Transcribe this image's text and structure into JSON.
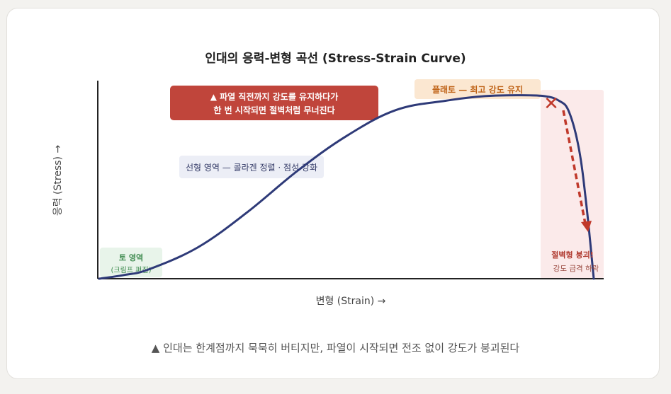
{
  "title": "인대의 응력-변형 곡선 (Stress-Strain Curve)",
  "caption": "▲ 인대는 한계점까지 묵묵히 버티지만, 파열이 시작되면 전조 없이 강도가 붕괴된다",
  "colors": {
    "curve": "#2e3a78",
    "warning_box": "#c0453b",
    "plateau_box": "#fbe7d1",
    "linear_box": "#eceef6",
    "toe_box": "#e8f4ea",
    "collapse_zone": "#fbeaea",
    "collapse_arrow": "#c0392b"
  },
  "chart_data": {
    "type": "line",
    "xlabel": "변형 (Strain) →",
    "ylabel": "응력 (Stress) →",
    "series": [
      {
        "x": [
          0,
          0.05,
          0.1,
          0.2,
          0.3,
          0.4,
          0.5,
          0.6,
          0.7,
          0.78,
          0.85,
          0.9,
          0.93,
          0.95,
          0.97,
          0.985,
          1.0
        ],
        "y": [
          0,
          0.02,
          0.05,
          0.17,
          0.36,
          0.58,
          0.77,
          0.91,
          0.96,
          0.985,
          0.99,
          0.985,
          0.96,
          0.9,
          0.7,
          0.4,
          0.0
        ]
      }
    ],
    "annotations": {
      "warning": [
        "▲ 파열 직전까지 강도를 유지하다가",
        "한 번 시작되면 절벽처럼 무너진다"
      ],
      "plateau": "플래토 — 최고 강도 유지",
      "linear": "선형 영역 — 콜라겐 정렬 · 점성 강화",
      "toe": [
        "토 영역",
        "(크림프 펴짐)"
      ],
      "collapse": [
        "절벽형 붕괴!",
        "강도 급격 하락"
      ],
      "failure_marker": "✕"
    }
  }
}
